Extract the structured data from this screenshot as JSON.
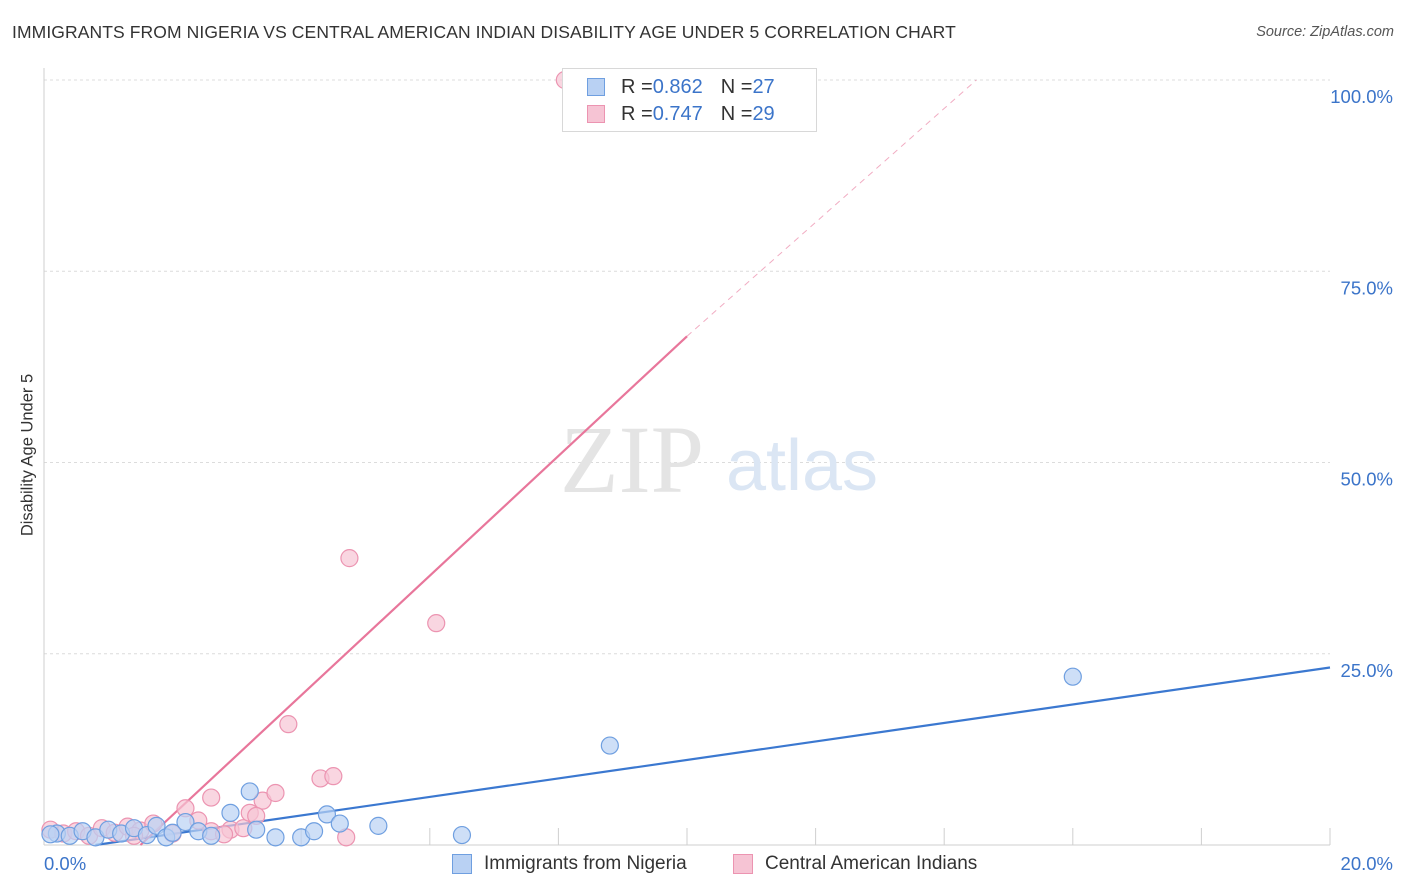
{
  "title": "IMMIGRANTS FROM NIGERIA VS CENTRAL AMERICAN INDIAN DISABILITY AGE UNDER 5 CORRELATION CHART",
  "source": "Source: ZipAtlas.com",
  "watermark": {
    "zip": "ZIP",
    "atlas": "atlas"
  },
  "legend": {
    "series1": {
      "r_label": "R = ",
      "r_value": "0.862",
      "n_label": "N = ",
      "n_value": "27"
    },
    "series2": {
      "r_label": "R = ",
      "r_value": "0.747",
      "n_label": "N = ",
      "n_value": "29"
    }
  },
  "chart_data": {
    "type": "scatter",
    "title": "IMMIGRANTS FROM NIGERIA VS CENTRAL AMERICAN INDIAN DISABILITY AGE UNDER 5 CORRELATION CHART",
    "xlabel": "",
    "ylabel": "Disability Age Under 5",
    "xlim": [
      0,
      20
    ],
    "ylim": [
      0,
      100
    ],
    "x_tick_labels": [
      "0.0%",
      "20.0%"
    ],
    "y_tick_labels": [
      "25.0%",
      "50.0%",
      "75.0%",
      "100.0%"
    ],
    "y_ticks": [
      25,
      50,
      75,
      100
    ],
    "grid": true,
    "colors": {
      "series1": "#3b78d0",
      "series1_fill": "#b9d1f3",
      "series2": "#e8769b",
      "series2_fill": "#f6c4d4",
      "tick": "#3b74c9"
    },
    "series": [
      {
        "name": "Immigrants from Nigeria",
        "points": [
          [
            0.2,
            1.5
          ],
          [
            0.4,
            1.2
          ],
          [
            0.6,
            1.8
          ],
          [
            0.8,
            1.0
          ],
          [
            1.0,
            2.0
          ],
          [
            1.2,
            1.5
          ],
          [
            1.4,
            2.2
          ],
          [
            1.6,
            1.3
          ],
          [
            1.75,
            2.5
          ],
          [
            1.9,
            1.0
          ],
          [
            2.0,
            1.6
          ],
          [
            2.2,
            3.0
          ],
          [
            2.4,
            1.8
          ],
          [
            2.6,
            1.2
          ],
          [
            2.9,
            4.2
          ],
          [
            3.2,
            7.0
          ],
          [
            3.3,
            2.0
          ],
          [
            3.6,
            1.0
          ],
          [
            4.0,
            1.0
          ],
          [
            4.2,
            1.8
          ],
          [
            4.4,
            4.0
          ],
          [
            4.6,
            2.8
          ],
          [
            5.2,
            2.5
          ],
          [
            6.5,
            1.3
          ],
          [
            8.8,
            13.0
          ],
          [
            16.0,
            22.0
          ],
          [
            0.1,
            1.4
          ]
        ],
        "trend": {
          "x": [
            0.8,
            20.0
          ],
          "y": [
            0.0,
            23.2
          ]
        }
      },
      {
        "name": "Central American Indians",
        "points": [
          [
            0.1,
            2.0
          ],
          [
            0.3,
            1.5
          ],
          [
            0.5,
            1.8
          ],
          [
            0.7,
            1.2
          ],
          [
            0.9,
            2.2
          ],
          [
            1.1,
            1.6
          ],
          [
            1.3,
            2.4
          ],
          [
            1.5,
            1.9
          ],
          [
            1.7,
            2.8
          ],
          [
            2.0,
            1.5
          ],
          [
            2.2,
            4.8
          ],
          [
            2.4,
            3.2
          ],
          [
            2.6,
            1.8
          ],
          [
            2.6,
            6.2
          ],
          [
            2.9,
            2.0
          ],
          [
            3.1,
            2.2
          ],
          [
            3.2,
            4.2
          ],
          [
            3.4,
            5.8
          ],
          [
            3.6,
            6.8
          ],
          [
            3.8,
            15.8
          ],
          [
            4.3,
            8.7
          ],
          [
            4.5,
            9.0
          ],
          [
            4.7,
            1.0
          ],
          [
            4.75,
            37.5
          ],
          [
            6.1,
            29.0
          ],
          [
            8.1,
            100.0
          ],
          [
            1.4,
            1.2
          ],
          [
            2.8,
            1.4
          ],
          [
            3.3,
            3.8
          ]
        ],
        "trend": {
          "x": [
            1.5,
            10.0
          ],
          "y": [
            0.0,
            66.5
          ]
        },
        "trend_dashed": {
          "x": [
            10.0,
            14.5
          ],
          "y": [
            66.5,
            100.0
          ]
        }
      }
    ]
  }
}
